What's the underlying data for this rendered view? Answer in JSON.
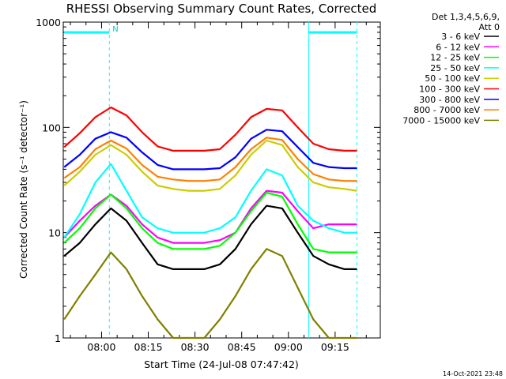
{
  "chart_data": {
    "type": "line",
    "title": "RHESSI Observing Summary Count Rates, Corrected",
    "xlabel": "Start Time (24-Jul-08 07:47:42)",
    "ylabel": "Corrected Count Rate (s⁻¹ detector⁻¹)",
    "y_scale": "log",
    "ylim": [
      1,
      1000
    ],
    "xlim": [
      "07:47:42",
      "09:29:30"
    ],
    "x_ticks": [
      "08:00",
      "08:15",
      "08:30",
      "08:45",
      "09:00",
      "09:15"
    ],
    "y_ticks": [
      "1",
      "10",
      "100",
      "1000"
    ],
    "legend_title": [
      "Det 1,3,4,5,6,9,",
      "Att 0"
    ],
    "legend_position": "right",
    "timestamp": "14-Oct-2021 23:48",
    "annotations": [
      {
        "text": "N",
        "x": "08:03:30"
      }
    ],
    "markers": [
      {
        "type": "dashed_vertical",
        "color": "#00ffff",
        "x": "08:02:30"
      },
      {
        "type": "solid_vertical",
        "color": "#00ffff",
        "x": "09:06:30"
      },
      {
        "type": "dashed_vertical",
        "color": "#00ffff",
        "x": "09:22:00"
      }
    ],
    "bars_top": [
      {
        "color": "#00ffff",
        "from": "07:48:00",
        "to": "08:02:30"
      },
      {
        "color": "#00ffff",
        "from": "09:06:30",
        "to": "09:22:00"
      }
    ],
    "x": [
      "07:48",
      "07:53",
      "07:58",
      "08:03",
      "08:08",
      "08:13",
      "08:18",
      "08:23",
      "08:28",
      "08:33",
      "08:38",
      "08:43",
      "08:48",
      "08:53",
      "08:58",
      "09:03",
      "09:08",
      "09:13",
      "09:18",
      "09:22"
    ],
    "series": [
      {
        "name": "3 - 6 keV",
        "color": "#000000",
        "values": [
          6,
          8,
          12,
          17,
          13,
          8,
          5,
          4.5,
          4.5,
          4.5,
          5,
          7,
          12,
          18,
          17,
          10,
          6,
          5,
          4.5,
          4.5
        ]
      },
      {
        "name": "6 - 12 keV",
        "color": "#ff00ff",
        "values": [
          9,
          13,
          18,
          23,
          18,
          12,
          9,
          8,
          8,
          8,
          8.5,
          10,
          17,
          25,
          24,
          16,
          11,
          12,
          12,
          12
        ]
      },
      {
        "name": "12 - 25 keV",
        "color": "#00ff00",
        "values": [
          8,
          11,
          17,
          23,
          17,
          11,
          8,
          7,
          7,
          7,
          7.5,
          10,
          16,
          24,
          22,
          12,
          7,
          6.5,
          6.5,
          6.5
        ]
      },
      {
        "name": "25 - 50 keV",
        "color": "#00ffff",
        "values": [
          9,
          15,
          30,
          45,
          25,
          14,
          11,
          10,
          10,
          10,
          11,
          14,
          25,
          40,
          35,
          18,
          13,
          11,
          10,
          10
        ]
      },
      {
        "name": "50 - 100 keV",
        "color": "#cccc00",
        "values": [
          28,
          38,
          55,
          68,
          55,
          38,
          28,
          26,
          25,
          25,
          26,
          35,
          55,
          75,
          68,
          42,
          30,
          27,
          26,
          25
        ]
      },
      {
        "name": "100 - 300 keV",
        "color": "#ff0000",
        "values": [
          65,
          88,
          125,
          155,
          130,
          90,
          66,
          60,
          60,
          60,
          62,
          85,
          125,
          150,
          145,
          100,
          70,
          62,
          60,
          60
        ]
      },
      {
        "name": "300 - 800 keV",
        "color": "#0000ff",
        "values": [
          42,
          55,
          78,
          90,
          80,
          58,
          44,
          40,
          40,
          40,
          41,
          52,
          78,
          95,
          92,
          65,
          46,
          42,
          41,
          41
        ]
      },
      {
        "name": "800 - 7000 keV",
        "color": "#ff8000",
        "values": [
          33,
          42,
          62,
          75,
          63,
          44,
          34,
          32,
          31,
          31,
          32,
          42,
          62,
          80,
          76,
          50,
          36,
          32,
          31,
          31
        ]
      },
      {
        "name": "7000 - 15000 keV",
        "color": "#808000",
        "values": [
          1.5,
          2.5,
          4,
          6.5,
          4.5,
          2.5,
          1.5,
          1,
          1,
          1,
          1.5,
          2.5,
          4.5,
          7,
          6,
          3,
          1.5,
          1,
          1,
          1
        ]
      }
    ]
  }
}
